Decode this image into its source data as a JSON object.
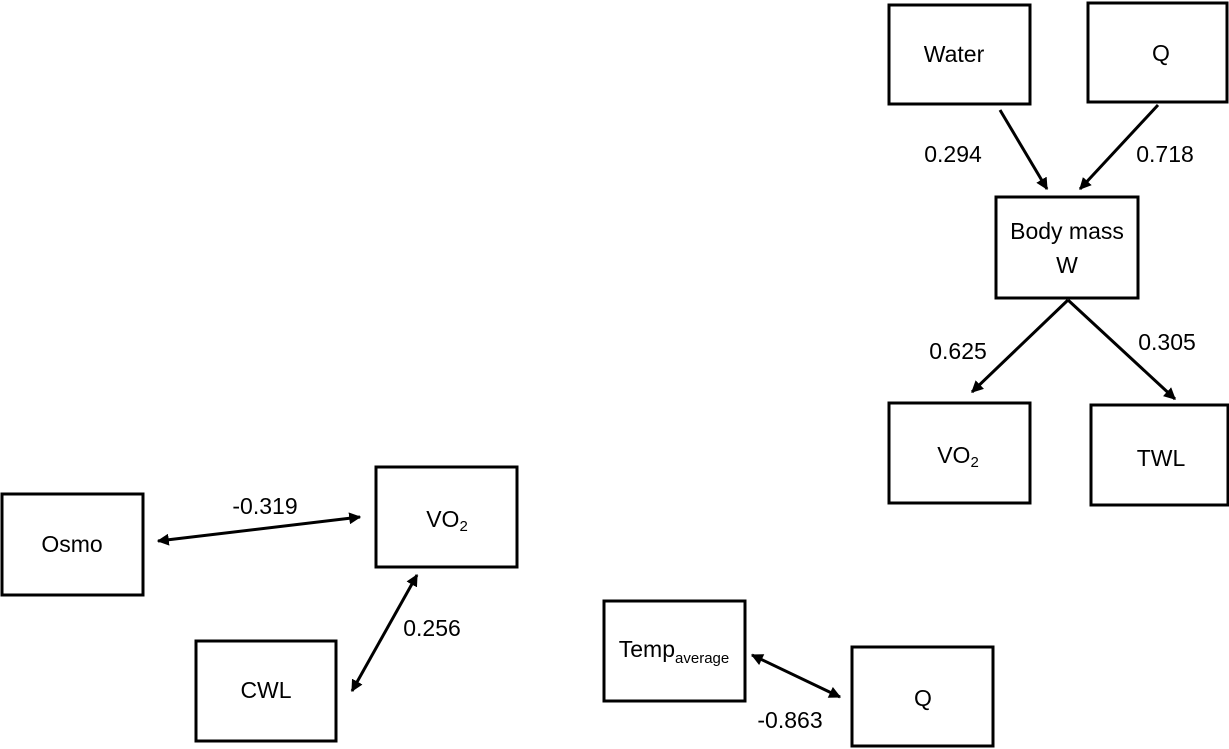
{
  "nodes": [
    {
      "label": "Water"
    },
    {
      "label": "Q"
    },
    {
      "lines": [
        "Body mass",
        "W"
      ]
    },
    {
      "label": "VO",
      "sub": "2"
    },
    {
      "label": "TWL"
    },
    {
      "label": "Osmo"
    },
    {
      "label": "VO",
      "sub": "2"
    },
    {
      "label": "CWL"
    },
    {
      "label": "Temp",
      "sub": "average"
    },
    {
      "label": "Q"
    }
  ],
  "edges": [
    {
      "label": "0.294"
    },
    {
      "label": "0.718"
    },
    {
      "label": "0.625"
    },
    {
      "label": "0.305"
    },
    {
      "label": "-0.319"
    },
    {
      "label": "0.256"
    },
    {
      "label": "-0.863"
    }
  ]
}
